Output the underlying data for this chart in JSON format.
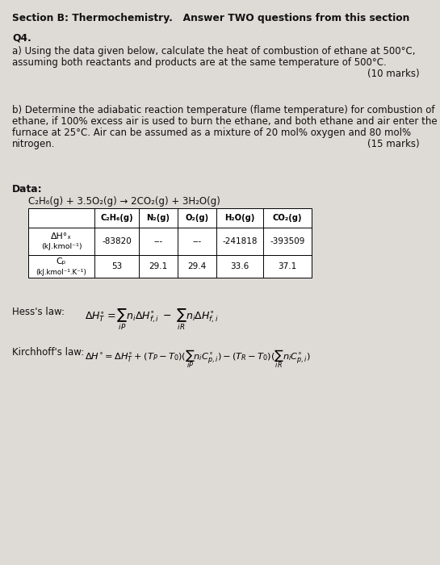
{
  "bg_color": "#dedad5",
  "title": "Section B: Thermochemistry.   Answer TWO questions from this section",
  "q4_label": "Q4.",
  "qa_line1": "a) Using the data given below, calculate the heat of combustion of ethane at 500°C,",
  "qa_line2": "assuming both reactants and products are at the same temperature of 500°C.",
  "qa_marks": "(10 marks)",
  "qb_line1": "b) Determine the adiabatic reaction temperature (flame temperature) for combustion of",
  "qb_line2": "ethane, if 100% excess air is used to burn the ethane, and both ethane and air enter the",
  "qb_line3": "furnace at 25°C. Air can be assumed as a mixture of 20 mol% oxygen and 80 mol%",
  "qb_line4": "nitrogen.",
  "qb_marks": "(15 marks)",
  "data_label": "Data:",
  "reaction": "C₂H₆(g) + 3.5O₂(g) → 2CO₂(g) + 3H₂O(g)",
  "col_headers": [
    "C₂H₆(g)",
    "N₂(g)",
    "O₂(g)",
    "H₂O(g)",
    "CO₂(g)"
  ],
  "row1_label_a": "ΔH°ₓ",
  "row1_label_b": "(kJ.kmol⁻¹)",
  "row1_vals": [
    "-83820",
    "---",
    "---",
    "-241818",
    "-393509"
  ],
  "row2_label_a": "Cₚ",
  "row2_label_b": "(kJ.kmol⁻¹.K⁻¹)",
  "row2_vals": [
    "53",
    "29.1",
    "29.4",
    "33.6",
    "37.1"
  ],
  "hess_label": "Hess's law:",
  "kirchhoff_label": "Kirchhoff's law:"
}
